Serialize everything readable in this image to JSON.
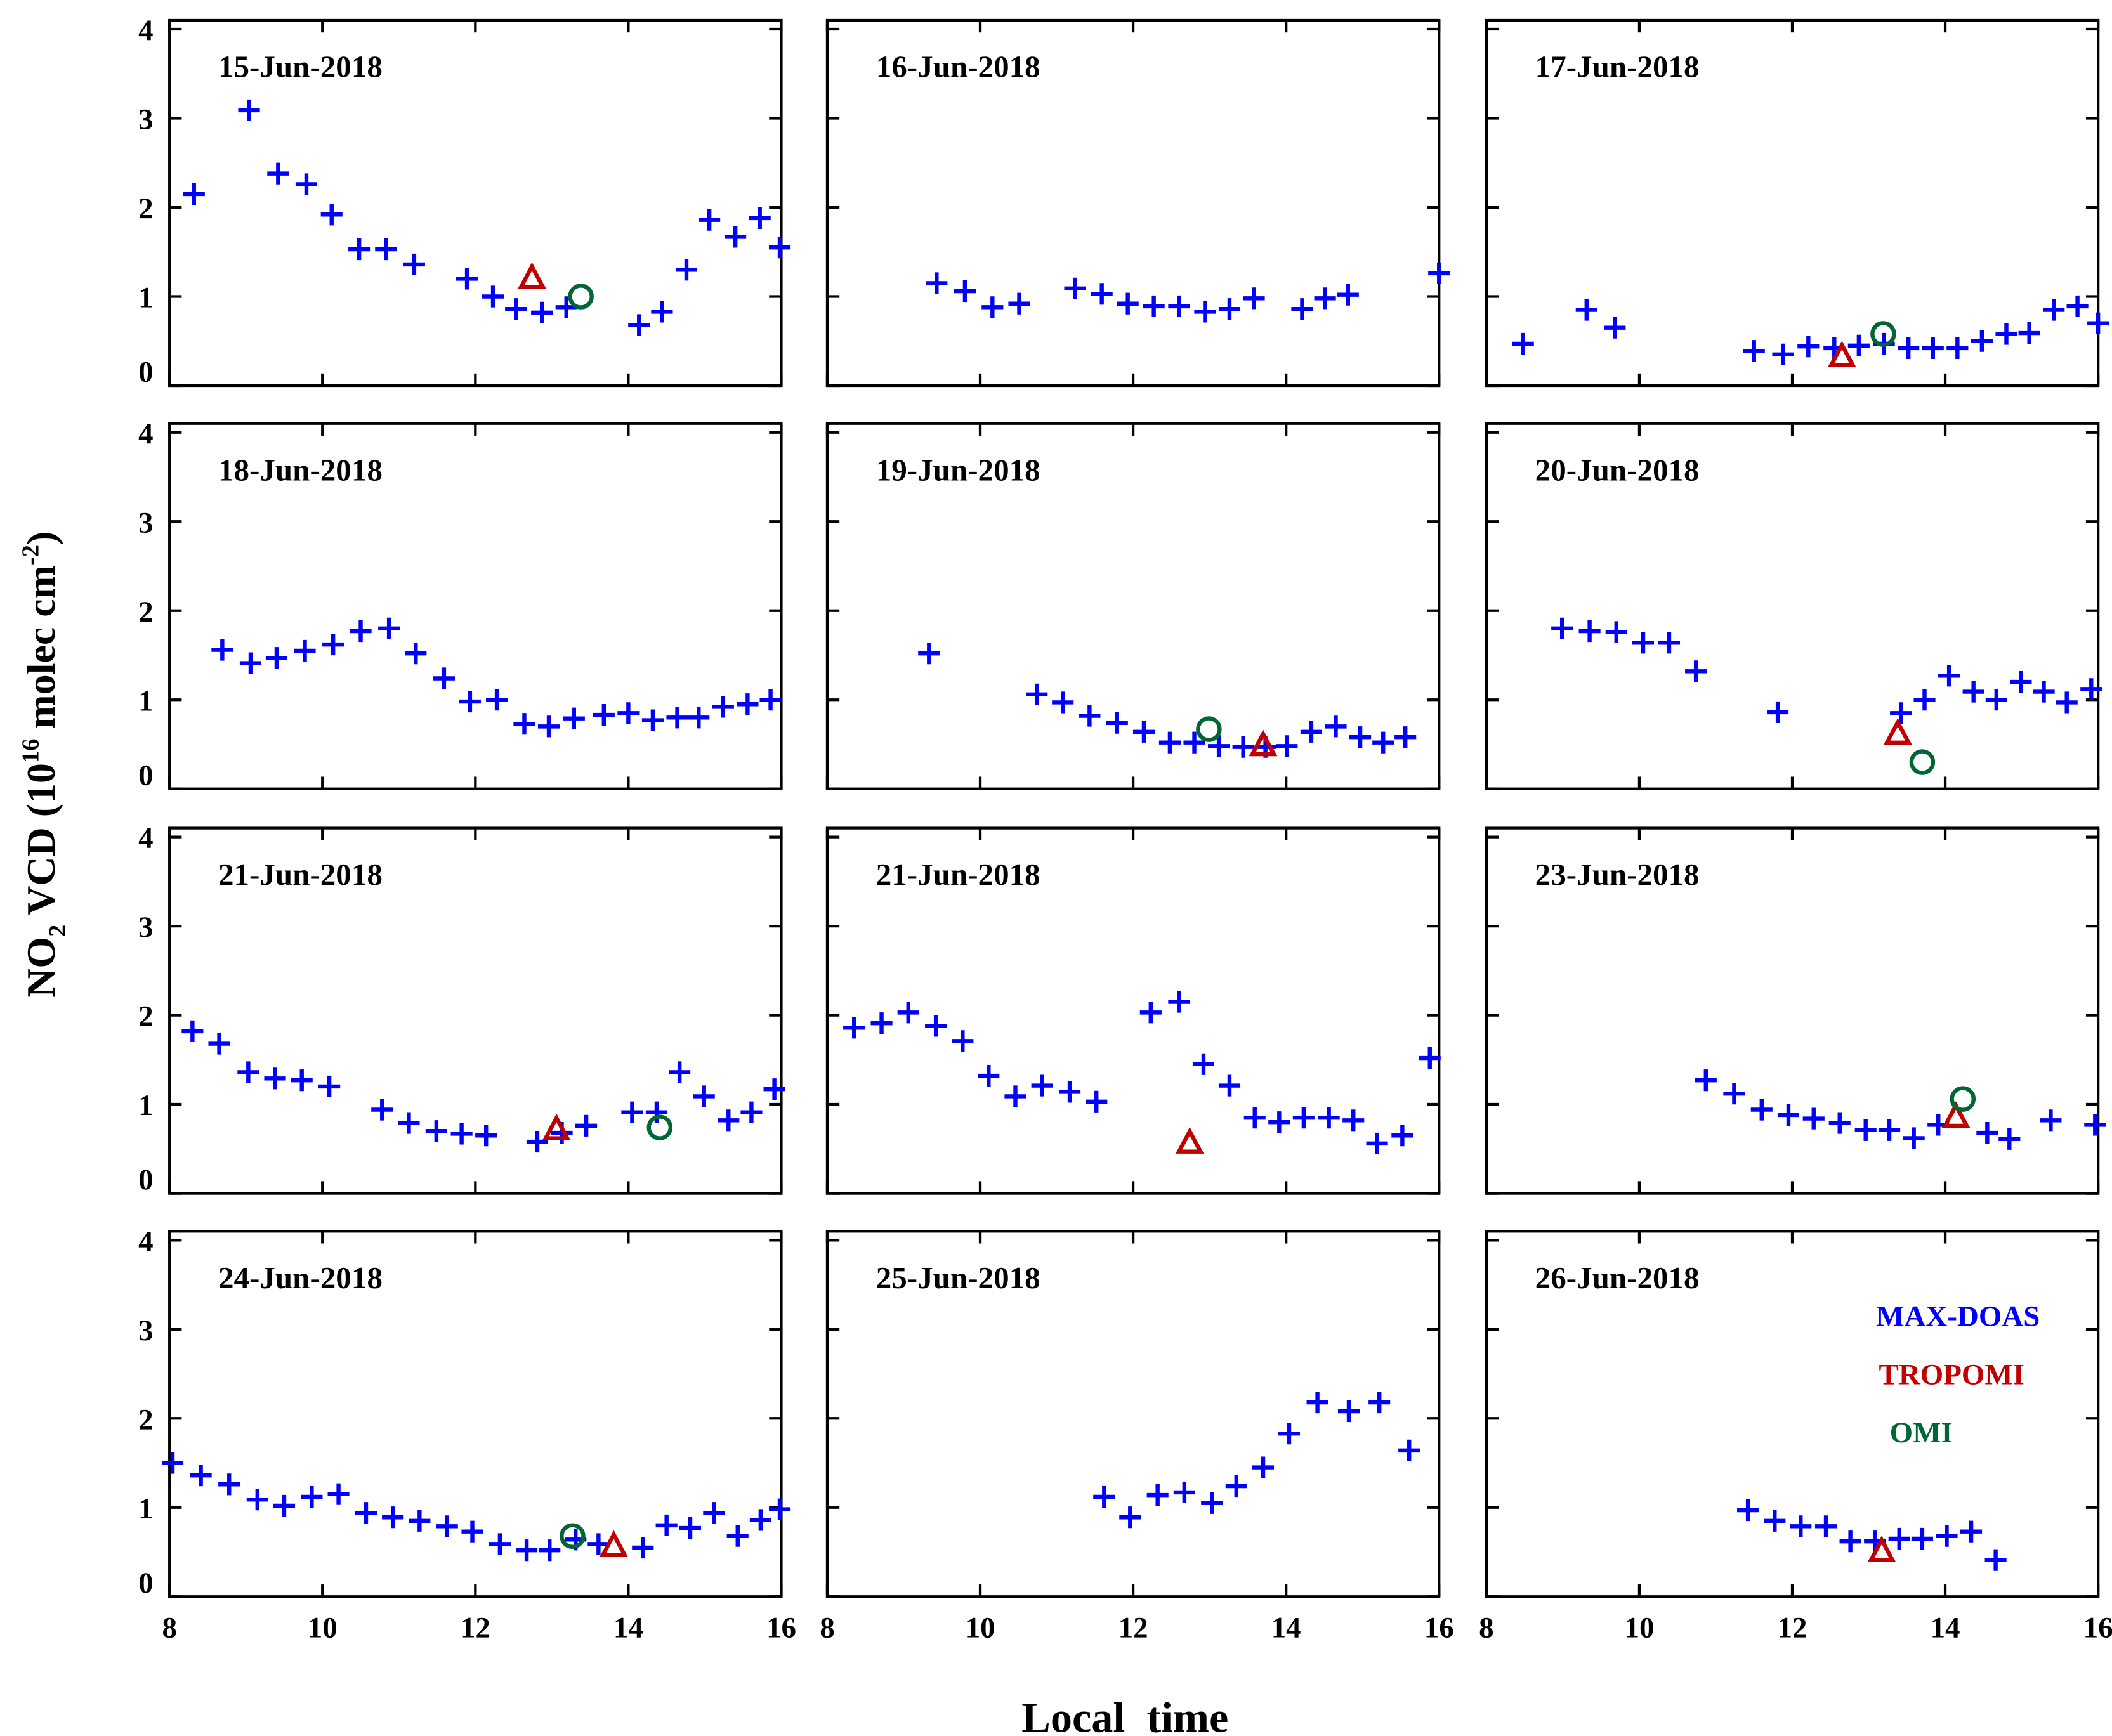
{
  "chart_data": {
    "type": "scatter",
    "xlabel": "Local  time",
    "ylabel_parts": [
      "NO",
      "2",
      " VCD (10",
      "16",
      " molec cm",
      "-2",
      ")"
    ],
    "xlim": [
      8,
      16
    ],
    "ylim": [
      0,
      4.1
    ],
    "xticks": [
      "8",
      "10",
      "12",
      "14",
      "16"
    ],
    "yticks": [
      "0",
      "1",
      "2",
      "3",
      "4"
    ],
    "grid": false,
    "legend": [
      {
        "label": "MAX-DOAS",
        "color": "#0000ff",
        "marker": "plus"
      },
      {
        "label": "TROPOMI",
        "color": "#c00000",
        "marker": "triangle"
      },
      {
        "label": "OMI",
        "color": "#006633",
        "marker": "circle"
      }
    ],
    "legend_placement": "panel-12 top-right",
    "panels": [
      {
        "title": "15-Jun-2018",
        "max_doas": [
          [
            8.32,
            2.15
          ],
          [
            9.04,
            3.09
          ],
          [
            9.42,
            2.38
          ],
          [
            9.79,
            2.26
          ],
          [
            10.12,
            1.92
          ],
          [
            10.48,
            1.53
          ],
          [
            10.83,
            1.53
          ],
          [
            11.2,
            1.36
          ],
          [
            11.89,
            1.2
          ],
          [
            12.23,
            1.0
          ],
          [
            12.53,
            0.86
          ],
          [
            12.87,
            0.82
          ],
          [
            13.19,
            0.88
          ],
          [
            14.14,
            0.68
          ],
          [
            14.44,
            0.83
          ],
          [
            14.76,
            1.3
          ],
          [
            15.06,
            1.86
          ],
          [
            15.4,
            1.67
          ],
          [
            15.72,
            1.88
          ],
          [
            15.98,
            1.55
          ]
        ],
        "tropomi": [
          [
            12.74,
            1.2
          ]
        ],
        "omi": [
          [
            13.38,
            1.0
          ]
        ]
      },
      {
        "title": "16-Jun-2018",
        "max_doas": [
          [
            9.43,
            1.15
          ],
          [
            9.8,
            1.06
          ],
          [
            10.16,
            0.88
          ],
          [
            10.51,
            0.92
          ],
          [
            11.24,
            1.09
          ],
          [
            11.59,
            1.03
          ],
          [
            11.93,
            0.92
          ],
          [
            12.27,
            0.89
          ],
          [
            12.6,
            0.89
          ],
          [
            12.94,
            0.83
          ],
          [
            13.26,
            0.86
          ],
          [
            13.58,
            0.98
          ],
          [
            14.21,
            0.86
          ],
          [
            14.51,
            0.98
          ],
          [
            14.81,
            1.02
          ],
          [
            16.0,
            1.26
          ]
        ],
        "tropomi": [],
        "omi": []
      },
      {
        "title": "17-Jun-2018",
        "max_doas": [
          [
            8.48,
            0.47
          ],
          [
            9.31,
            0.85
          ],
          [
            9.68,
            0.65
          ],
          [
            11.5,
            0.39
          ],
          [
            11.88,
            0.35
          ],
          [
            12.21,
            0.44
          ],
          [
            12.55,
            0.42
          ],
          [
            12.87,
            0.45
          ],
          [
            13.2,
            0.47
          ],
          [
            13.52,
            0.42
          ],
          [
            13.84,
            0.42
          ],
          [
            14.16,
            0.42
          ],
          [
            14.48,
            0.5
          ],
          [
            14.8,
            0.58
          ],
          [
            15.1,
            0.59
          ],
          [
            15.42,
            0.85
          ],
          [
            15.73,
            0.89
          ],
          [
            16.0,
            0.7
          ]
        ],
        "tropomi": [
          [
            12.65,
            0.32
          ]
        ],
        "omi": [
          [
            13.19,
            0.58
          ]
        ]
      },
      {
        "title": "18-Jun-2018",
        "max_doas": [
          [
            8.69,
            1.56
          ],
          [
            9.06,
            1.41
          ],
          [
            9.4,
            1.47
          ],
          [
            9.77,
            1.55
          ],
          [
            10.14,
            1.62
          ],
          [
            10.5,
            1.77
          ],
          [
            10.87,
            1.8
          ],
          [
            11.22,
            1.52
          ],
          [
            11.59,
            1.24
          ],
          [
            11.93,
            0.98
          ],
          [
            12.28,
            1.0
          ],
          [
            12.64,
            0.73
          ],
          [
            12.96,
            0.7
          ],
          [
            13.29,
            0.79
          ],
          [
            13.68,
            0.83
          ],
          [
            14.0,
            0.85
          ],
          [
            14.32,
            0.77
          ],
          [
            14.64,
            0.8
          ],
          [
            14.92,
            0.8
          ],
          [
            15.24,
            0.92
          ],
          [
            15.56,
            0.95
          ],
          [
            15.86,
            1.0
          ]
        ],
        "tropomi": [],
        "omi": []
      },
      {
        "title": "19-Jun-2018",
        "max_doas": [
          [
            9.33,
            1.52
          ],
          [
            10.74,
            1.06
          ],
          [
            11.08,
            0.97
          ],
          [
            11.43,
            0.82
          ],
          [
            11.79,
            0.74
          ],
          [
            12.14,
            0.64
          ],
          [
            12.48,
            0.52
          ],
          [
            12.8,
            0.52
          ],
          [
            13.12,
            0.48
          ],
          [
            13.44,
            0.47
          ],
          [
            13.73,
            0.47
          ],
          [
            14.01,
            0.48
          ],
          [
            14.33,
            0.64
          ],
          [
            14.65,
            0.7
          ],
          [
            14.97,
            0.58
          ],
          [
            15.27,
            0.52
          ],
          [
            15.56,
            0.58
          ]
        ],
        "tropomi": [
          [
            13.7,
            0.48
          ]
        ],
        "omi": [
          [
            12.99,
            0.67
          ]
        ]
      },
      {
        "title": "20-Jun-2018",
        "max_doas": [
          [
            8.99,
            1.8
          ],
          [
            9.35,
            1.77
          ],
          [
            9.7,
            1.76
          ],
          [
            10.05,
            1.64
          ],
          [
            10.39,
            1.64
          ],
          [
            10.74,
            1.32
          ],
          [
            11.81,
            0.86
          ],
          [
            13.42,
            0.85
          ],
          [
            13.73,
            1.0
          ],
          [
            14.05,
            1.27
          ],
          [
            14.37,
            1.09
          ],
          [
            14.67,
            1.0
          ],
          [
            14.99,
            1.2
          ],
          [
            15.29,
            1.09
          ],
          [
            15.59,
            0.97
          ],
          [
            15.91,
            1.12
          ]
        ],
        "tropomi": [
          [
            13.38,
            0.61
          ]
        ],
        "omi": [
          [
            13.7,
            0.3
          ]
        ]
      },
      {
        "title": "21-Jun-2018",
        "max_doas": [
          [
            8.3,
            1.82
          ],
          [
            8.65,
            1.68
          ],
          [
            9.03,
            1.36
          ],
          [
            9.38,
            1.29
          ],
          [
            9.73,
            1.27
          ],
          [
            10.09,
            1.2
          ],
          [
            10.78,
            0.94
          ],
          [
            11.13,
            0.79
          ],
          [
            11.49,
            0.7
          ],
          [
            11.82,
            0.67
          ],
          [
            12.14,
            0.65
          ],
          [
            12.81,
            0.58
          ],
          [
            13.13,
            0.68
          ],
          [
            13.45,
            0.76
          ],
          [
            14.05,
            0.91
          ],
          [
            14.37,
            0.91
          ],
          [
            14.67,
            1.36
          ],
          [
            14.99,
            1.09
          ],
          [
            15.31,
            0.82
          ],
          [
            15.61,
            0.91
          ],
          [
            15.91,
            1.17
          ]
        ],
        "tropomi": [
          [
            13.06,
            0.71
          ]
        ],
        "omi": [
          [
            14.41,
            0.74
          ]
        ]
      },
      {
        "title": "21-Jun-2018",
        "max_doas": [
          [
            8.35,
            1.86
          ],
          [
            8.71,
            1.91
          ],
          [
            9.06,
            2.03
          ],
          [
            9.42,
            1.88
          ],
          [
            9.77,
            1.71
          ],
          [
            10.11,
            1.32
          ],
          [
            10.46,
            1.09
          ],
          [
            10.81,
            1.21
          ],
          [
            11.17,
            1.14
          ],
          [
            11.52,
            1.03
          ],
          [
            12.23,
            2.03
          ],
          [
            12.6,
            2.15
          ],
          [
            12.92,
            1.45
          ],
          [
            13.26,
            1.21
          ],
          [
            13.59,
            0.85
          ],
          [
            13.91,
            0.8
          ],
          [
            14.23,
            0.85
          ],
          [
            14.56,
            0.85
          ],
          [
            14.88,
            0.82
          ],
          [
            15.19,
            0.56
          ],
          [
            15.52,
            0.65
          ],
          [
            15.88,
            1.52
          ]
        ],
        "tropomi": [
          [
            12.74,
            0.56
          ]
        ],
        "omi": []
      },
      {
        "title": "23-Jun-2018",
        "max_doas": [
          [
            10.87,
            1.27
          ],
          [
            11.24,
            1.12
          ],
          [
            11.6,
            0.94
          ],
          [
            11.95,
            0.88
          ],
          [
            12.28,
            0.84
          ],
          [
            12.62,
            0.79
          ],
          [
            12.96,
            0.71
          ],
          [
            13.27,
            0.71
          ],
          [
            13.59,
            0.62
          ],
          [
            13.91,
            0.77
          ],
          [
            14.55,
            0.68
          ],
          [
            14.84,
            0.61
          ],
          [
            15.38,
            0.82
          ],
          [
            15.96,
            0.77
          ]
        ],
        "tropomi": [
          [
            14.14,
            0.85
          ]
        ],
        "omi": [
          [
            14.23,
            1.06
          ]
        ]
      },
      {
        "title": "24-Jun-2018",
        "max_doas": [
          [
            8.04,
            1.5
          ],
          [
            8.41,
            1.36
          ],
          [
            8.78,
            1.26
          ],
          [
            9.15,
            1.09
          ],
          [
            9.5,
            1.02
          ],
          [
            9.86,
            1.12
          ],
          [
            10.21,
            1.15
          ],
          [
            10.57,
            0.94
          ],
          [
            10.92,
            0.89
          ],
          [
            11.27,
            0.85
          ],
          [
            11.63,
            0.79
          ],
          [
            11.96,
            0.73
          ],
          [
            12.32,
            0.59
          ],
          [
            12.67,
            0.52
          ],
          [
            12.97,
            0.52
          ],
          [
            13.31,
            0.64
          ],
          [
            13.61,
            0.59
          ],
          [
            14.19,
            0.55
          ],
          [
            14.5,
            0.8
          ],
          [
            14.81,
            0.77
          ],
          [
            15.12,
            0.94
          ],
          [
            15.43,
            0.68
          ],
          [
            15.73,
            0.86
          ],
          [
            15.98,
            0.98
          ]
        ],
        "tropomi": [
          [
            13.81,
            0.56
          ]
        ],
        "omi": [
          [
            13.27,
            0.68
          ]
        ]
      },
      {
        "title": "25-Jun-2018",
        "max_doas": [
          [
            11.62,
            1.12
          ],
          [
            11.96,
            0.89
          ],
          [
            12.32,
            1.14
          ],
          [
            12.67,
            1.17
          ],
          [
            13.03,
            1.05
          ],
          [
            13.35,
            1.24
          ],
          [
            13.7,
            1.45
          ],
          [
            14.04,
            1.83
          ],
          [
            14.41,
            2.18
          ],
          [
            14.82,
            2.08
          ],
          [
            15.22,
            2.18
          ],
          [
            15.61,
            1.64
          ]
        ],
        "tropomi": [],
        "omi": []
      },
      {
        "title": "26-Jun-2018",
        "max_doas": [
          [
            11.42,
            0.97
          ],
          [
            11.77,
            0.85
          ],
          [
            12.11,
            0.79
          ],
          [
            12.44,
            0.79
          ],
          [
            12.76,
            0.62
          ],
          [
            13.08,
            0.62
          ],
          [
            13.4,
            0.65
          ],
          [
            13.7,
            0.65
          ],
          [
            14.02,
            0.68
          ],
          [
            14.34,
            0.73
          ],
          [
            14.66,
            0.41
          ]
        ],
        "tropomi": [
          [
            13.17,
            0.5
          ]
        ],
        "omi": []
      }
    ]
  }
}
